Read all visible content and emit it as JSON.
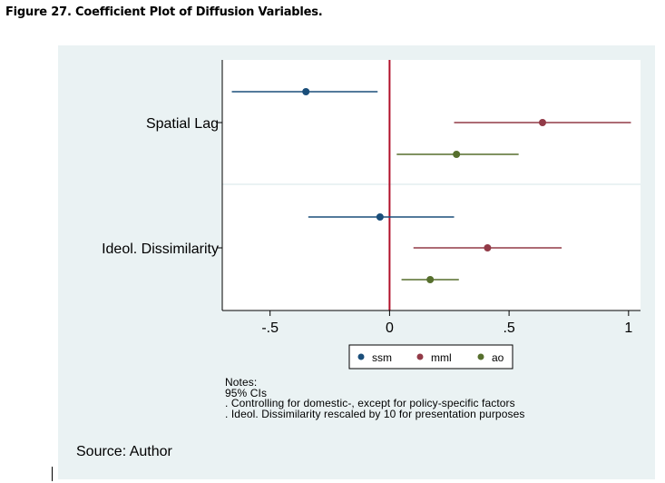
{
  "figure_title": "Figure 27. Coefficient Plot of Diffusion Variables.",
  "source": "Source: Author",
  "notes": [
    "Notes:",
    "95% CIs",
    ". Controlling for domestic-, except for policy-specific factors",
    ". Ideol. Dissimilarity rescaled by 10 for presentation purposes"
  ],
  "chart_data": {
    "type": "coefficient-plot",
    "xlim": [
      -0.7,
      1.05
    ],
    "xticks": [
      -0.5,
      0,
      0.5,
      1
    ],
    "xtick_labels": [
      "-.5",
      "0",
      ".5",
      "1"
    ],
    "reference_line": 0,
    "categories": [
      "Spatial Lag",
      "Ideol. Dissimilarity"
    ],
    "legend": {
      "position": "bottom"
    },
    "series": [
      {
        "name": "ssm",
        "color": "#1a4e7a",
        "points": [
          {
            "category": "Spatial Lag",
            "estimate": -0.35,
            "ci": [
              -0.66,
              -0.05
            ]
          },
          {
            "category": "Ideol. Dissimilarity",
            "estimate": -0.04,
            "ci": [
              -0.34,
              0.27
            ]
          }
        ]
      },
      {
        "name": "mml",
        "color": "#923a47",
        "points": [
          {
            "category": "Spatial Lag",
            "estimate": 0.64,
            "ci": [
              0.27,
              1.01
            ]
          },
          {
            "category": "Ideol. Dissimilarity",
            "estimate": 0.41,
            "ci": [
              0.1,
              0.72
            ]
          }
        ]
      },
      {
        "name": "ao",
        "color": "#566f2d",
        "points": [
          {
            "category": "Spatial Lag",
            "estimate": 0.28,
            "ci": [
              0.03,
              0.54
            ]
          },
          {
            "category": "Ideol. Dissimilarity",
            "estimate": 0.17,
            "ci": [
              0.05,
              0.29
            ]
          }
        ]
      }
    ]
  }
}
